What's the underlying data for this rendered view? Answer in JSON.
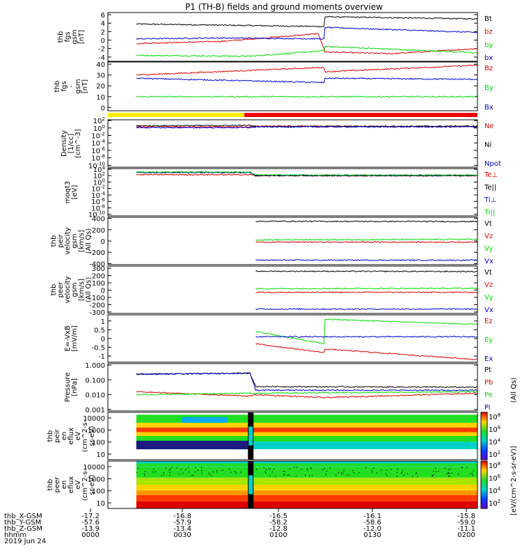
{
  "title": "P1 (TH-B) fields and ground moments overview",
  "colors": {
    "black": "#000000",
    "red": "#dd0000",
    "green": "#00dd00",
    "blue": "#0000cc",
    "yellow": "#ffee00",
    "bar_red": "#ee0000"
  },
  "footer": {
    "row_labels": [
      "thb_X-GSM",
      "thb_Y-GSM",
      "thb_Z-GSM",
      "hhmm",
      "2019 Jun 24"
    ],
    "columns": [
      {
        "x": -17.2,
        "y": -57.6,
        "z": -13.9,
        "time": "0000"
      },
      {
        "x": -16.8,
        "y": -57.9,
        "z": -13.4,
        "time": "0030"
      },
      {
        "x": -16.5,
        "y": -58.2,
        "z": -12.8,
        "time": "0100"
      },
      {
        "x": -16.1,
        "y": -58.6,
        "z": -12.0,
        "time": "0130"
      },
      {
        "x": -15.8,
        "y": -59.0,
        "z": -11.1,
        "time": "0200"
      }
    ]
  },
  "colorbar": {
    "label": "[eV/(cm^2-s-sr-eV)]",
    "label2": "(All Qs)",
    "upper_ticks": [
      "10^8",
      "10^6",
      "10^4",
      "10^2"
    ],
    "lower_ticks": [
      "10^8",
      "10^6",
      "10^4",
      "10^2"
    ]
  },
  "chart_data": [
    {
      "type": "line",
      "name": "fgs",
      "ylabel": [
        "thb",
        "fgs",
        "gsm",
        "[nT]"
      ],
      "yticks": [
        6,
        4,
        2,
        0,
        -2,
        -4
      ],
      "ylim": [
        -5,
        6.5
      ],
      "series": [
        {
          "name": "Bt",
          "color": "black",
          "x": [
            0,
            33,
            33.2,
            60
          ],
          "y": [
            3.8,
            3.2,
            5.5,
            5.0
          ]
        },
        {
          "name": "bz",
          "color": "red",
          "x": [
            0,
            15,
            32,
            33.2,
            45,
            60
          ],
          "y": [
            -0.8,
            -0.3,
            1.5,
            -2.8,
            -3.2,
            -2.0
          ]
        },
        {
          "name": "by",
          "color": "green",
          "x": [
            0,
            20,
            33,
            33.2,
            60
          ],
          "y": [
            -3.6,
            -3.8,
            -2.5,
            -1.5,
            -3.0
          ]
        },
        {
          "name": "bx",
          "color": "blue",
          "x": [
            0,
            15,
            33,
            33.2,
            60
          ],
          "y": [
            0.3,
            0.5,
            0.3,
            3.0,
            1.8
          ]
        }
      ]
    },
    {
      "type": "line",
      "name": "fgs_gsm",
      "ylabel": [
        "thb",
        "fgs",
        "-",
        "gsm",
        "[nT]"
      ],
      "yticks": [
        40,
        30,
        20,
        10,
        0
      ],
      "ylim": [
        -3,
        42
      ],
      "series": [
        {
          "name": "Bz",
          "color": "red",
          "x": [
            0,
            33,
            33.2,
            60
          ],
          "y": [
            30,
            37,
            33,
            39
          ]
        },
        {
          "name": "By",
          "color": "green",
          "x": [
            0,
            60
          ],
          "y": [
            10,
            10
          ]
        },
        {
          "name": "Bx",
          "color": "blue",
          "x": [
            0,
            33,
            33.2,
            60
          ],
          "y": [
            27,
            23,
            27,
            26
          ]
        }
      ],
      "flags": [
        {
          "color": "yellow",
          "x": [
            -5,
            19
          ]
        },
        {
          "color": "bar_red",
          "x": [
            19,
            60
          ]
        }
      ]
    },
    {
      "type": "line",
      "name": "density",
      "log": true,
      "ylabel": [
        "Density",
        "[1/cc]",
        "[cm^-3]"
      ],
      "yticks": [
        "10^2",
        "10^0",
        "10^-2",
        "10^-4",
        "10^-6",
        "10^-8",
        "10^-10"
      ],
      "ylim": [
        -10.5,
        2.2
      ],
      "series": [
        {
          "name": "Ne",
          "color": "red",
          "x": [
            0,
            20,
            21,
            60
          ],
          "y": [
            0.3,
            0.3,
            0.5,
            0.4
          ]
        },
        {
          "name": "Ni",
          "color": "black",
          "x": [
            0,
            20,
            21,
            60
          ],
          "y": [
            0.6,
            0.7,
            0.4,
            0.5
          ]
        },
        {
          "name": "Npot",
          "color": "blue",
          "x": [
            0,
            20,
            21,
            60
          ],
          "y": [
            0.1,
            0.1,
            0.3,
            0.3
          ]
        }
      ]
    },
    {
      "type": "line",
      "name": "temperature",
      "log": true,
      "ylabel": [
        "moqt3",
        "[eV]"
      ],
      "yticks": [
        "10^4",
        "10^2",
        "10^0",
        "10^-2",
        "10^-4",
        "10^-6",
        "10^-8",
        "10^-10"
      ],
      "ylim": [
        -10.5,
        4.2
      ],
      "series": [
        {
          "name": "Te⊥",
          "color": "red",
          "x": [
            0,
            20,
            21,
            60
          ],
          "y": [
            2.3,
            2.3,
            2.0,
            2.0
          ]
        },
        {
          "name": "Te||",
          "color": "black",
          "x": [
            0,
            20,
            21,
            60
          ],
          "y": [
            3.0,
            3.0,
            2.0,
            2.0
          ]
        },
        {
          "name": "Ti⊥",
          "color": "blue",
          "x": [
            0,
            20,
            21,
            60
          ],
          "y": [
            3.0,
            3.0,
            2.1,
            2.1
          ]
        },
        {
          "name": "Ti||",
          "color": "green",
          "x": [
            0,
            20,
            21,
            60
          ],
          "y": [
            3.1,
            3.1,
            2.2,
            2.2
          ]
        }
      ]
    },
    {
      "type": "line",
      "name": "ion_velocity",
      "ylabel": [
        "thb",
        "peir",
        "velocity",
        "gsm",
        "[km/s]",
        "(All Qs)"
      ],
      "yticks": [
        400,
        200,
        0,
        -200,
        -400
      ],
      "ylim": [
        -420,
        420
      ],
      "series": [
        {
          "name": "Vt",
          "color": "black",
          "x": [
            21,
            60
          ],
          "y": [
            350,
            345
          ]
        },
        {
          "name": "Vz",
          "color": "red",
          "x": [
            21,
            60
          ],
          "y": [
            -20,
            -20
          ]
        },
        {
          "name": "Vy",
          "color": "green",
          "x": [
            21,
            60
          ],
          "y": [
            20,
            30
          ]
        },
        {
          "name": "Vx",
          "color": "blue",
          "x": [
            21,
            60
          ],
          "y": [
            -340,
            -340
          ]
        }
      ]
    },
    {
      "type": "line",
      "name": "electron_velocity",
      "ylabel": [
        "thb",
        "peer",
        "velocity",
        "gsm",
        "[km/s]",
        "(All Qs)"
      ],
      "yticks": [
        300,
        200,
        100,
        0,
        -100,
        -200,
        -300
      ],
      "ylim": [
        -320,
        330
      ],
      "series": [
        {
          "name": "Vt",
          "color": "black",
          "x": [
            21,
            60
          ],
          "y": [
            260,
            255
          ]
        },
        {
          "name": "Vz",
          "color": "red",
          "x": [
            21,
            60
          ],
          "y": [
            -30,
            -30
          ]
        },
        {
          "name": "Vy",
          "color": "green",
          "x": [
            21,
            60
          ],
          "y": [
            20,
            25
          ]
        },
        {
          "name": "Vx",
          "color": "blue",
          "x": [
            21,
            60
          ],
          "y": [
            -260,
            -260
          ]
        }
      ]
    },
    {
      "type": "line",
      "name": "efield",
      "ylabel": [
        "E=-VxB",
        "[mV/m]"
      ],
      "yticks": [
        1.0,
        0.5,
        0.0,
        -0.5,
        -1.0
      ],
      "ylim": [
        -1.35,
        1.35
      ],
      "series": [
        {
          "name": "Ez",
          "color": "red",
          "x": [
            21,
            33,
            33.2,
            60
          ],
          "y": [
            -0.3,
            -0.8,
            -0.6,
            -1.2
          ]
        },
        {
          "name": "Ey",
          "color": "green",
          "x": [
            21,
            33,
            33.2,
            60
          ],
          "y": [
            0.4,
            -0.3,
            1.1,
            0.8
          ]
        },
        {
          "name": "Ex",
          "color": "blue",
          "x": [
            21,
            60
          ],
          "y": [
            0.1,
            0.1
          ]
        }
      ]
    },
    {
      "type": "line",
      "name": "pressure",
      "log": true,
      "ylabel": [
        "Pressure",
        "[nPa]"
      ],
      "yticks": [
        "1.000",
        "0.100",
        "0.010",
        "0.001"
      ],
      "ylim": [
        -3.1,
        0.1
      ],
      "series": [
        {
          "name": "Pt",
          "color": "black",
          "x": [
            0,
            20,
            21,
            60
          ],
          "y": [
            -0.62,
            -0.55,
            -1.45,
            -1.5
          ]
        },
        {
          "name": "Pb",
          "color": "red",
          "x": [
            0,
            20,
            21,
            33,
            60
          ],
          "y": [
            -1.8,
            -2.1,
            -2.0,
            -2.2,
            -1.9
          ]
        },
        {
          "name": "Pe",
          "color": "green",
          "x": [
            0,
            20,
            21,
            60
          ],
          "y": [
            -2.0,
            -1.9,
            -1.9,
            -1.8
          ]
        },
        {
          "name": "Pi",
          "color": "blue",
          "x": [
            0,
            20,
            21,
            60
          ],
          "y": [
            -0.62,
            -0.55,
            -1.7,
            -1.7
          ]
        }
      ]
    },
    {
      "type": "heatmap",
      "name": "ion_spectrogram",
      "ylabel": [
        "thb",
        "peir",
        "en",
        "eflux",
        "eV",
        "(cm^2-s-",
        "sr-eV)"
      ],
      "yticks": [
        10000,
        1000,
        100,
        10
      ]
    },
    {
      "type": "heatmap",
      "name": "electron_spectrogram",
      "ylabel": [
        "thb",
        "peer",
        "en",
        "eflux",
        "eV",
        "(cm^2-s-",
        "sr-eV)"
      ],
      "yticks": [
        10000,
        1000,
        100,
        10
      ]
    }
  ]
}
